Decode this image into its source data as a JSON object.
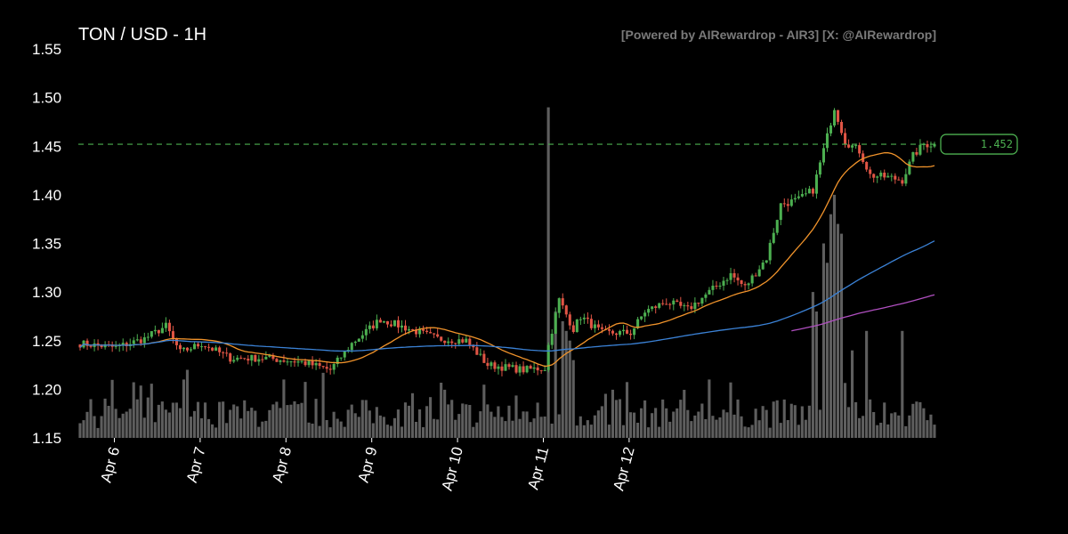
{
  "header": {
    "title": "TON / USD - 1H",
    "credit": "[Powered by AIRewardrop - AIR3] [X: @AIRewardrop]"
  },
  "chart_data": {
    "type": "candlestick",
    "title": "TON / USD - 1H",
    "ylim": [
      1.15,
      1.55
    ],
    "y_ticks": [
      "1.55",
      "1.50",
      "1.45",
      "1.40",
      "1.35",
      "1.30",
      "1.25",
      "1.20",
      "1.15"
    ],
    "x_ticks": [
      "Apr 6",
      "Apr 7",
      "Apr 8",
      "Apr 9",
      "Apr 10",
      "Apr 11",
      "Apr 12"
    ],
    "x_tick_day": [
      0,
      1,
      2,
      3,
      4,
      5,
      6
    ],
    "x_start_day": -0.42,
    "hours_per_day": 24,
    "last_price": 1.452,
    "last_price_label": "1.452",
    "colors": {
      "up": "#4caf50",
      "down": "#e05545",
      "volume": "#6e6e6e",
      "ma_short": "#f0932b",
      "ma_mid": "#3b82d6",
      "ma_long": "#b04fc0",
      "price_line": "#4caf50"
    },
    "keypoints": [
      [
        0,
        1.247
      ],
      [
        10,
        1.243
      ],
      [
        18,
        1.252
      ],
      [
        24,
        1.265
      ],
      [
        28,
        1.238
      ],
      [
        34,
        1.247
      ],
      [
        42,
        1.232
      ],
      [
        52,
        1.232
      ],
      [
        62,
        1.228
      ],
      [
        70,
        1.22
      ],
      [
        76,
        1.247
      ],
      [
        84,
        1.272
      ],
      [
        92,
        1.262
      ],
      [
        100,
        1.252
      ],
      [
        108,
        1.25
      ],
      [
        114,
        1.225
      ],
      [
        124,
        1.22
      ],
      [
        130,
        1.222
      ],
      [
        131,
        1.245
      ],
      [
        134,
        1.292
      ],
      [
        138,
        1.262
      ],
      [
        140,
        1.275
      ],
      [
        146,
        1.258
      ],
      [
        154,
        1.258
      ],
      [
        158,
        1.28
      ],
      [
        164,
        1.29
      ],
      [
        170,
        1.282
      ],
      [
        176,
        1.3
      ],
      [
        182,
        1.318
      ],
      [
        186,
        1.305
      ],
      [
        192,
        1.335
      ],
      [
        196,
        1.39
      ],
      [
        201,
        1.395
      ],
      [
        205,
        1.405
      ],
      [
        209,
        1.46
      ],
      [
        211,
        1.49
      ],
      [
        214,
        1.455
      ],
      [
        218,
        1.445
      ],
      [
        221,
        1.42
      ],
      [
        226,
        1.418
      ],
      [
        230,
        1.415
      ],
      [
        233,
        1.44
      ],
      [
        236,
        1.452
      ]
    ],
    "volume_spikes": [
      [
        131,
        1.49
      ],
      [
        133,
        1.28
      ],
      [
        135,
        1.27
      ],
      [
        136,
        1.26
      ],
      [
        137,
        1.25
      ],
      [
        138,
        1.23
      ],
      [
        30,
        1.22
      ],
      [
        29,
        1.21
      ],
      [
        57,
        1.21
      ],
      [
        176,
        1.21
      ],
      [
        205,
        1.3
      ],
      [
        206,
        1.28
      ],
      [
        208,
        1.35
      ],
      [
        209,
        1.33
      ],
      [
        210,
        1.38
      ],
      [
        211,
        1.4
      ],
      [
        212,
        1.37
      ],
      [
        213,
        1.36
      ],
      [
        216,
        1.24
      ],
      [
        220,
        1.26
      ],
      [
        230,
        1.26
      ]
    ]
  }
}
